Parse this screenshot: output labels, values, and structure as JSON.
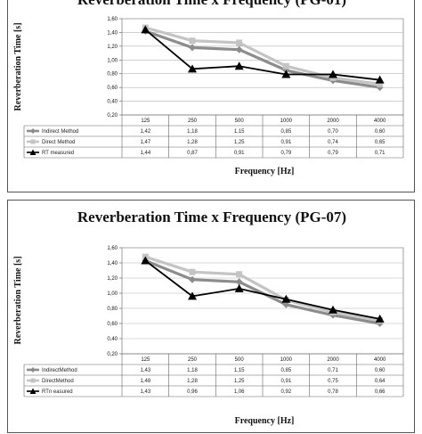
{
  "chart_data": [
    {
      "type": "line",
      "title": "Reverberation Time x Frequency (PG-01)",
      "xlabel": "Frequency [Hz]",
      "ylabel": "Reverberation Time [s]",
      "ylim": [
        0.2,
        1.6
      ],
      "ytick_labels": [
        "0,20",
        "0,40",
        "0,60",
        "0,80",
        "1,00",
        "1,20",
        "1,40",
        "1,60"
      ],
      "categories": [
        "125",
        "250",
        "500",
        "1000",
        "2000",
        "4000"
      ],
      "grid": true,
      "legend": "data table below plot",
      "series": [
        {
          "name": "Indirect Method",
          "values": [
            1.42,
            1.18,
            1.15,
            0.85,
            0.7,
            0.6
          ],
          "labels": [
            "1,42",
            "1,18",
            "1,15",
            "0,85",
            "0,70",
            "0,60"
          ],
          "color": "#8c8c8c",
          "marker": "diamond"
        },
        {
          "name": "Direct Method",
          "values": [
            1.47,
            1.28,
            1.25,
            0.91,
            0.74,
            0.65
          ],
          "labels": [
            "1,47",
            "1,28",
            "1,25",
            "0,91",
            "0,74",
            "0,65"
          ],
          "color": "#c4c4c4",
          "marker": "square"
        },
        {
          "name": "RT measured",
          "values": [
            1.44,
            0.87,
            0.91,
            0.79,
            0.79,
            0.71
          ],
          "labels": [
            "1,44",
            "0,87",
            "0,91",
            "0,79",
            "0,79",
            "0,71"
          ],
          "color": "#000000",
          "marker": "triangle"
        }
      ]
    },
    {
      "type": "line",
      "title": "Reverberation Time x Frequency (PG-07)",
      "xlabel": "Frequency [Hz]",
      "ylabel": "Reverberation Time [s]",
      "ylim": [
        0.2,
        1.6
      ],
      "ytick_labels": [
        "0,20",
        "0,40",
        "0,60",
        "0,80",
        "1,00",
        "1,20",
        "1,40",
        "1,60"
      ],
      "categories": [
        "125",
        "250",
        "500",
        "1000",
        "2000",
        "4000"
      ],
      "grid": true,
      "legend": "data table below plot",
      "series": [
        {
          "name": "IndirectMethod",
          "values": [
            1.43,
            1.18,
            1.15,
            0.85,
            0.71,
            0.6
          ],
          "labels": [
            "1,43",
            "1,18",
            "1,15",
            "0,85",
            "0,71",
            "0,60"
          ],
          "color": "#8c8c8c",
          "marker": "diamond"
        },
        {
          "name": "DirectMethod",
          "values": [
            1.48,
            1.28,
            1.25,
            0.91,
            0.75,
            0.64
          ],
          "labels": [
            "1,48",
            "1,28",
            "1,25",
            "0,91",
            "0,75",
            "0,64"
          ],
          "color": "#c4c4c4",
          "marker": "square"
        },
        {
          "name": "RTn easured",
          "values": [
            1.43,
            0.96,
            1.06,
            0.92,
            0.78,
            0.66
          ],
          "labels": [
            "1,43",
            "0,96",
            "1,06",
            "0,92",
            "0,78",
            "0,66"
          ],
          "color": "#000000",
          "marker": "triangle"
        }
      ]
    }
  ]
}
